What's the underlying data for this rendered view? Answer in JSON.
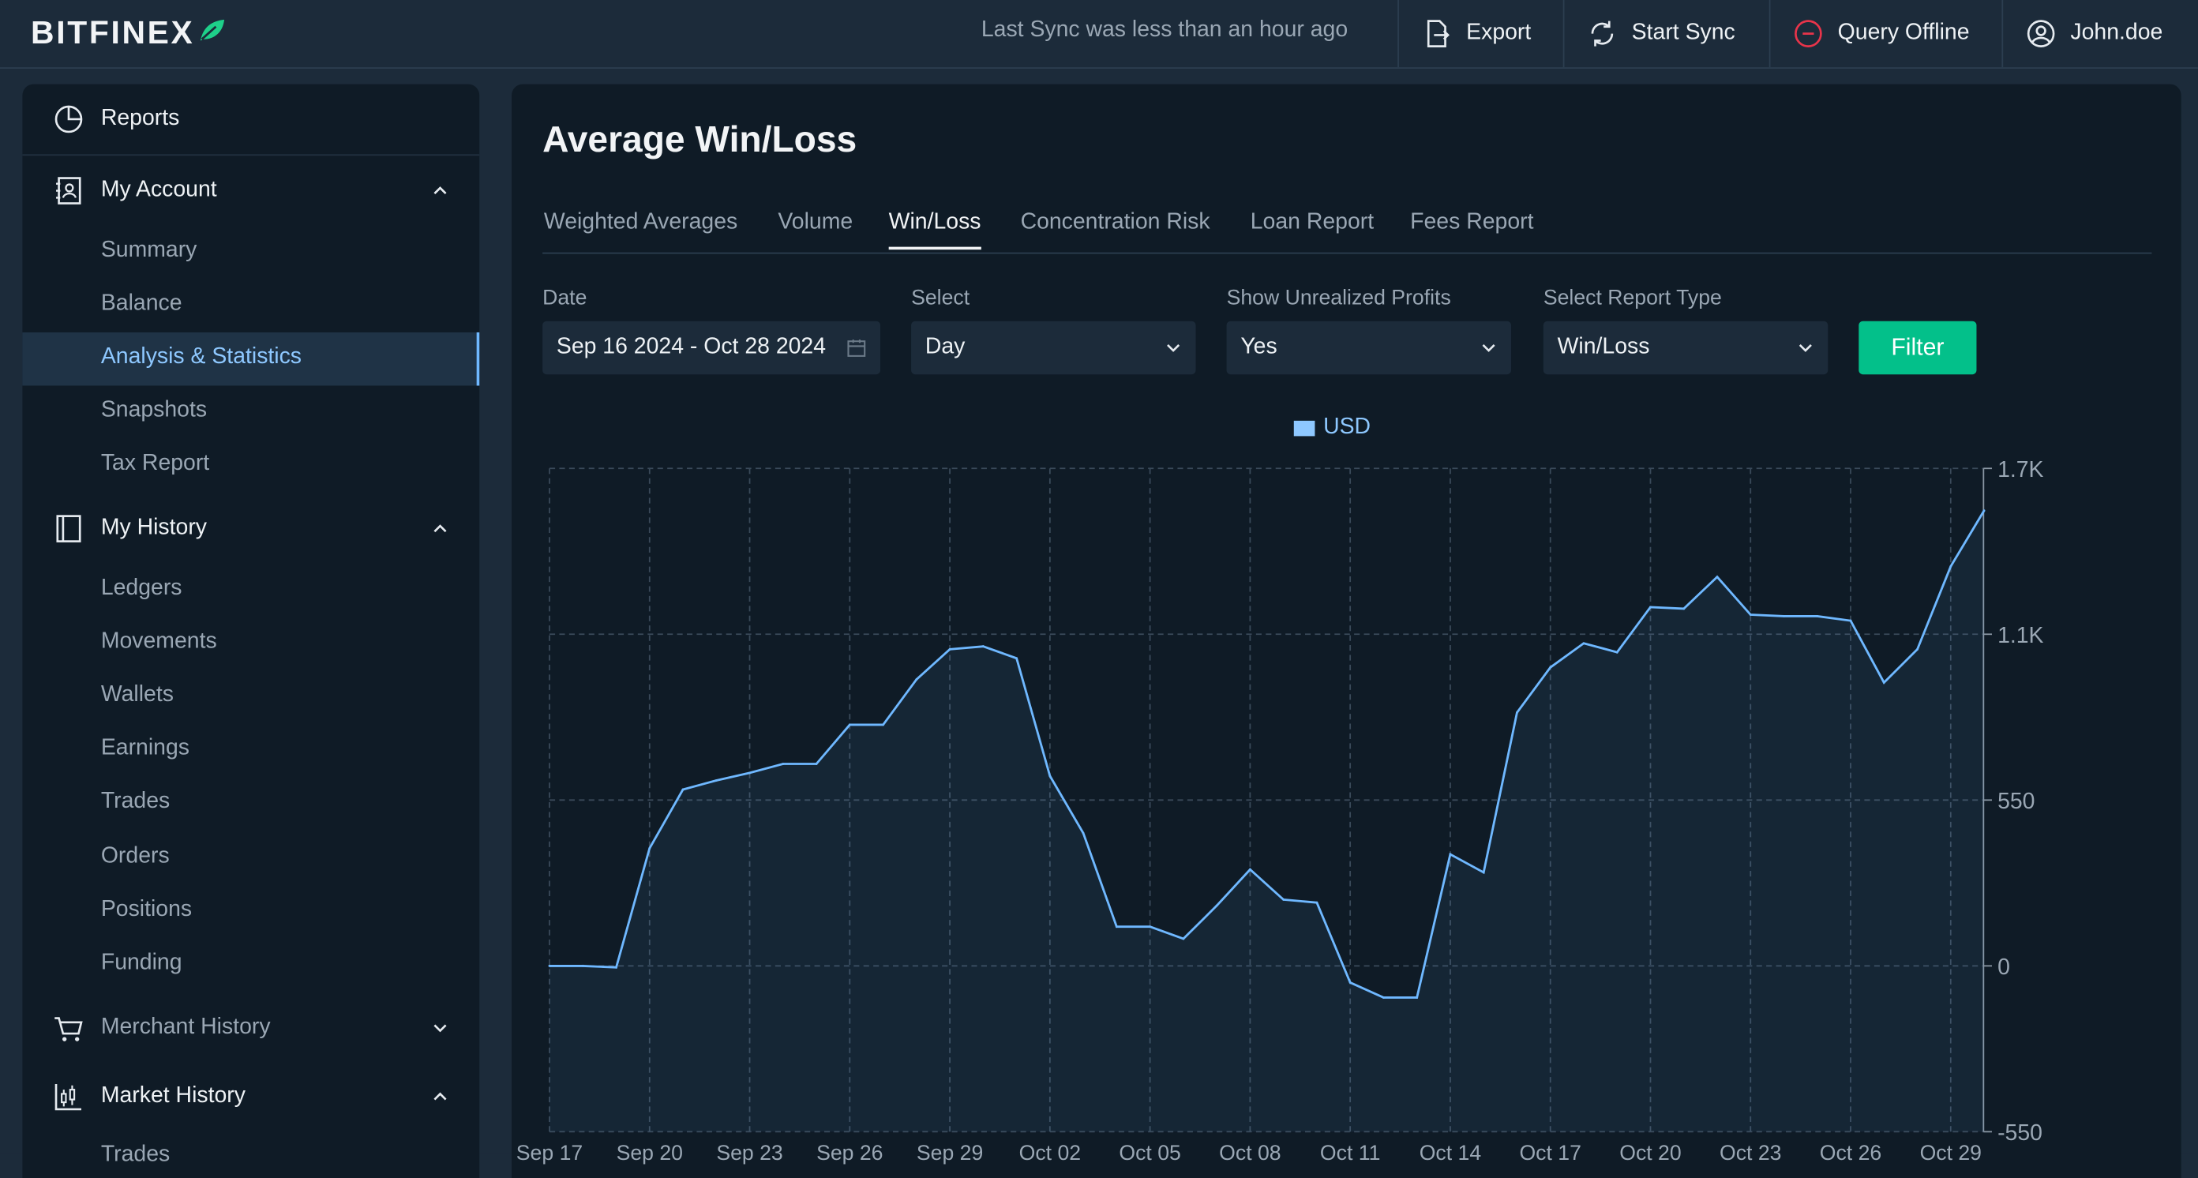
{
  "header": {
    "logo": "BITFINEX",
    "sync_text": "Last Sync was less than an hour ago",
    "export_label": "Export",
    "start_sync_label": "Start Sync",
    "query_offline_label": "Query Offline",
    "user_label": "John.doe"
  },
  "sidebar": {
    "reports_label": "Reports",
    "my_account": {
      "label": "My Account",
      "items": [
        "Summary",
        "Balance",
        "Analysis & Statistics",
        "Snapshots",
        "Tax Report"
      ],
      "active": "Analysis & Statistics"
    },
    "my_history": {
      "label": "My History",
      "items": [
        "Ledgers",
        "Movements",
        "Wallets",
        "Earnings",
        "Trades",
        "Orders",
        "Positions",
        "Funding"
      ]
    },
    "merchant_history_label": "Merchant History",
    "market_history": {
      "label": "Market History",
      "items": [
        "Trades"
      ]
    }
  },
  "main": {
    "title": "Average Win/Loss",
    "tabs": [
      "Weighted Averages",
      "Volume",
      "Win/Loss",
      "Concentration Risk",
      "Loan Report",
      "Fees Report"
    ],
    "active_tab": "Win/Loss",
    "filters": {
      "date_label": "Date",
      "date_value": "Sep 16 2024 - Oct 28 2024",
      "select_label": "Select",
      "select_value": "Day",
      "unrealized_label": "Show Unrealized Profits",
      "unrealized_value": "Yes",
      "report_type_label": "Select Report Type",
      "report_type_value": "Win/Loss",
      "filter_button": "Filter"
    }
  },
  "colors": {
    "accent": "#03c08a",
    "line": "#6fb8ff",
    "panel": "#0f1b26",
    "background": "#1c2b3a"
  },
  "chart_data": {
    "type": "area",
    "legend": [
      "USD"
    ],
    "legend_placement": "top-center",
    "x_ticks": [
      "Sep 17",
      "Sep 20",
      "Sep 23",
      "Sep 26",
      "Sep 29",
      "Oct 02",
      "Oct 05",
      "Oct 08",
      "Oct 11",
      "Oct 14",
      "Oct 17",
      "Oct 20",
      "Oct 23",
      "Oct 26",
      "Oct 29"
    ],
    "y_ticks": [
      "1.7K",
      "1.1K",
      "550",
      "0",
      "-550"
    ],
    "ylim": [
      -550,
      1650
    ],
    "grid": true,
    "series": [
      {
        "name": "USD",
        "start_date": "2024-09-17",
        "values": [
          0,
          0,
          -5,
          390,
          585,
          615,
          640,
          670,
          670,
          800,
          800,
          950,
          1050,
          1060,
          1020,
          630,
          440,
          130,
          130,
          90,
          200,
          320,
          220,
          210,
          -55,
          -105,
          -105,
          370,
          310,
          840,
          990,
          1070,
          1040,
          1190,
          1185,
          1290,
          1165,
          1160,
          1160,
          1145,
          940,
          1050,
          1325,
          1510
        ]
      }
    ]
  }
}
